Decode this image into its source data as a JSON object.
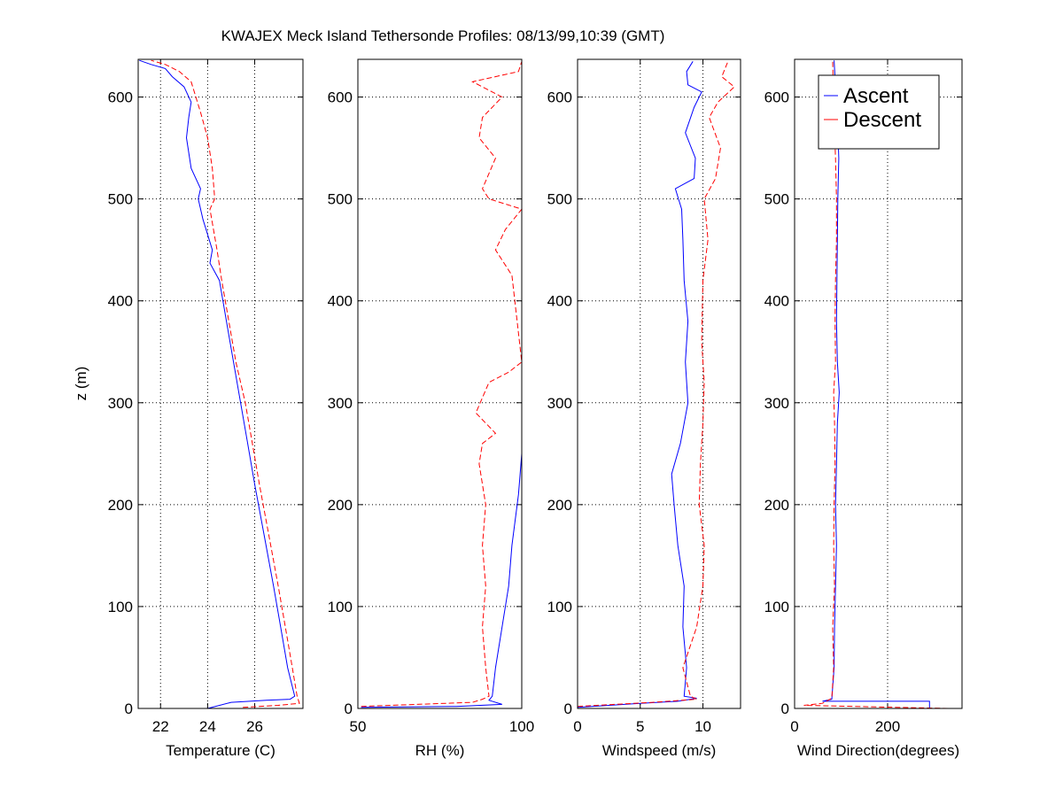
{
  "chart_data": {
    "type": "line",
    "title": "KWAJEX Meck Island Tethersonde Profiles: 08/13/99,10:39 (GMT)",
    "ylabel": "z (m)",
    "ylim": [
      0,
      637
    ],
    "yticks": [
      0,
      100,
      200,
      300,
      400,
      500,
      600
    ],
    "grid": true,
    "legend": {
      "placement": "top-right of Wind Direction panel",
      "entries": [
        {
          "name": "Ascent",
          "color": "#0000ff",
          "style": "solid"
        },
        {
          "name": "Descent",
          "color": "#ff0000",
          "style": "dashed"
        }
      ]
    },
    "panels": [
      {
        "id": "temperature",
        "xlabel": "Temperature (C)",
        "xlim": [
          21.05,
          28.05
        ],
        "xticks": [
          22,
          24,
          26
        ],
        "series": [
          {
            "name": "Ascent",
            "points": [
              [
                24.0,
                0
              ],
              [
                25.0,
                6
              ],
              [
                26.5,
                8
              ],
              [
                27.5,
                9
              ],
              [
                27.7,
                12
              ],
              [
                27.4,
                40
              ],
              [
                27.1,
                80
              ],
              [
                26.8,
                120
              ],
              [
                26.4,
                170
              ],
              [
                26.0,
                220
              ],
              [
                25.7,
                260
              ],
              [
                25.4,
                300
              ],
              [
                25.1,
                340
              ],
              [
                24.8,
                380
              ],
              [
                24.5,
                420
              ],
              [
                24.1,
                437
              ],
              [
                24.2,
                450
              ],
              [
                23.8,
                480
              ],
              [
                23.6,
                500
              ],
              [
                23.7,
                510
              ],
              [
                23.3,
                530
              ],
              [
                23.1,
                560
              ],
              [
                23.2,
                580
              ],
              [
                23.3,
                595
              ],
              [
                23.0,
                610
              ],
              [
                22.5,
                620
              ],
              [
                22.2,
                628
              ],
              [
                21.6,
                632
              ],
              [
                21.1,
                636
              ]
            ]
          },
          {
            "name": "Descent",
            "points": [
              [
                25.5,
                1
              ],
              [
                27.0,
                3
              ],
              [
                27.9,
                5
              ],
              [
                27.8,
                12
              ],
              [
                27.6,
                40
              ],
              [
                27.3,
                80
              ],
              [
                27.0,
                120
              ],
              [
                26.6,
                170
              ],
              [
                26.2,
                220
              ],
              [
                25.9,
                260
              ],
              [
                25.6,
                300
              ],
              [
                25.2,
                340
              ],
              [
                24.9,
                380
              ],
              [
                24.6,
                420
              ],
              [
                24.4,
                450
              ],
              [
                24.1,
                490
              ],
              [
                24.3,
                500
              ],
              [
                24.2,
                530
              ],
              [
                24.0,
                560
              ],
              [
                23.7,
                585
              ],
              [
                23.5,
                600
              ],
              [
                23.3,
                615
              ],
              [
                22.8,
                625
              ],
              [
                22.2,
                632
              ],
              [
                21.6,
                636
              ]
            ]
          }
        ]
      },
      {
        "id": "rh",
        "xlabel": "RH (%)",
        "xlim": [
          50,
          100
        ],
        "xticks": [
          50,
          100
        ],
        "series": [
          {
            "name": "Ascent",
            "points": [
              [
                51,
                1
              ],
              [
                80,
                2
              ],
              [
                94,
                4
              ],
              [
                90,
                8
              ],
              [
                91,
                12
              ],
              [
                92,
                40
              ],
              [
                94,
                80
              ],
              [
                96,
                120
              ],
              [
                97,
                160
              ],
              [
                99,
                210
              ],
              [
                100,
                250
              ],
              [
                100,
                270
              ]
            ]
          },
          {
            "name": "Descent",
            "points": [
              [
                51,
                2
              ],
              [
                85,
                6
              ],
              [
                88,
                9
              ],
              [
                90,
                12
              ],
              [
                89,
                40
              ],
              [
                88,
                80
              ],
              [
                89,
                120
              ],
              [
                88,
                160
              ],
              [
                89,
                200
              ],
              [
                87,
                240
              ],
              [
                88,
                260
              ],
              [
                92,
                270
              ],
              [
                86,
                290
              ],
              [
                90,
                320
              ],
              [
                96,
                330
              ],
              [
                100,
                340
              ],
              [
                97,
                425
              ],
              [
                92,
                450
              ],
              [
                95,
                470
              ],
              [
                100,
                490
              ],
              [
                90,
                500
              ],
              [
                88,
                510
              ],
              [
                92,
                540
              ],
              [
                87,
                560
              ],
              [
                88,
                580
              ],
              [
                94,
                600
              ],
              [
                85,
                615
              ],
              [
                99,
                625
              ],
              [
                100,
                635
              ]
            ]
          }
        ]
      },
      {
        "id": "windspeed",
        "xlabel": "Windspeed (m/s)",
        "xlim": [
          0,
          13
        ],
        "xticks": [
          0,
          5,
          10
        ],
        "series": [
          {
            "name": "Ascent",
            "points": [
              [
                0,
                1
              ],
              [
                5,
                5
              ],
              [
                8,
                7
              ],
              [
                9.5,
                10
              ],
              [
                8.5,
                12
              ],
              [
                8.7,
                40
              ],
              [
                8.4,
                80
              ],
              [
                8.5,
                120
              ],
              [
                8.0,
                160
              ],
              [
                7.7,
                200
              ],
              [
                7.5,
                230
              ],
              [
                8.2,
                260
              ],
              [
                8.8,
                300
              ],
              [
                8.6,
                340
              ],
              [
                8.8,
                380
              ],
              [
                8.5,
                420
              ],
              [
                8.4,
                460
              ],
              [
                8.3,
                490
              ],
              [
                7.8,
                510
              ],
              [
                9.3,
                520
              ],
              [
                9.4,
                540
              ],
              [
                8.6,
                565
              ],
              [
                9.3,
                590
              ],
              [
                9.9,
                605
              ],
              [
                8.8,
                612
              ],
              [
                8.7,
                625
              ],
              [
                9.2,
                635
              ]
            ]
          },
          {
            "name": "Descent",
            "points": [
              [
                0,
                2
              ],
              [
                6,
                6
              ],
              [
                9.5,
                9
              ],
              [
                9.0,
                12
              ],
              [
                8.4,
                40
              ],
              [
                9.5,
                80
              ],
              [
                10.0,
                120
              ],
              [
                10.1,
                160
              ],
              [
                9.7,
                200
              ],
              [
                9.8,
                240
              ],
              [
                10.0,
                280
              ],
              [
                10.1,
                320
              ],
              [
                9.9,
                360
              ],
              [
                10.0,
                420
              ],
              [
                10.4,
                460
              ],
              [
                10.1,
                500
              ],
              [
                11.0,
                520
              ],
              [
                11.4,
                550
              ],
              [
                10.5,
                580
              ],
              [
                11.2,
                595
              ],
              [
                12.5,
                610
              ],
              [
                11.5,
                620
              ],
              [
                12.0,
                635
              ]
            ]
          }
        ]
      },
      {
        "id": "wind_direction",
        "xlabel": "Wind Direction(degrees)",
        "xlim": [
          0,
          360
        ],
        "xticks": [
          0,
          200
        ],
        "series": [
          {
            "name": "Ascent",
            "points": [
              [
                290,
                0
              ],
              [
                290,
                7
              ],
              [
                60,
                7
              ],
              [
                80,
                9
              ],
              [
                85,
                40
              ],
              [
                86,
                80
              ],
              [
                88,
                120
              ],
              [
                90,
                160
              ],
              [
                88,
                200
              ],
              [
                90,
                240
              ],
              [
                92,
                280
              ],
              [
                96,
                310
              ],
              [
                92,
                340
              ],
              [
                90,
                380
              ],
              [
                91,
                420
              ],
              [
                92,
                460
              ],
              [
                93,
                500
              ],
              [
                95,
                540
              ],
              [
                92,
                580
              ],
              [
                88,
                610
              ],
              [
                85,
                636
              ]
            ]
          },
          {
            "name": "Descent",
            "points": [
              [
                330,
                0
              ],
              [
                20,
                3
              ],
              [
                60,
                5
              ],
              [
                80,
                10
              ],
              [
                84,
                40
              ],
              [
                82,
                80
              ],
              [
                86,
                120
              ],
              [
                84,
                160
              ],
              [
                85,
                200
              ],
              [
                87,
                240
              ],
              [
                86,
                280
              ],
              [
                84,
                310
              ],
              [
                88,
                340
              ],
              [
                87,
                380
              ],
              [
                88,
                420
              ],
              [
                90,
                460
              ],
              [
                90,
                500
              ],
              [
                88,
                540
              ],
              [
                85,
                580
              ],
              [
                83,
                610
              ],
              [
                82,
                636
              ]
            ]
          }
        ]
      }
    ]
  }
}
